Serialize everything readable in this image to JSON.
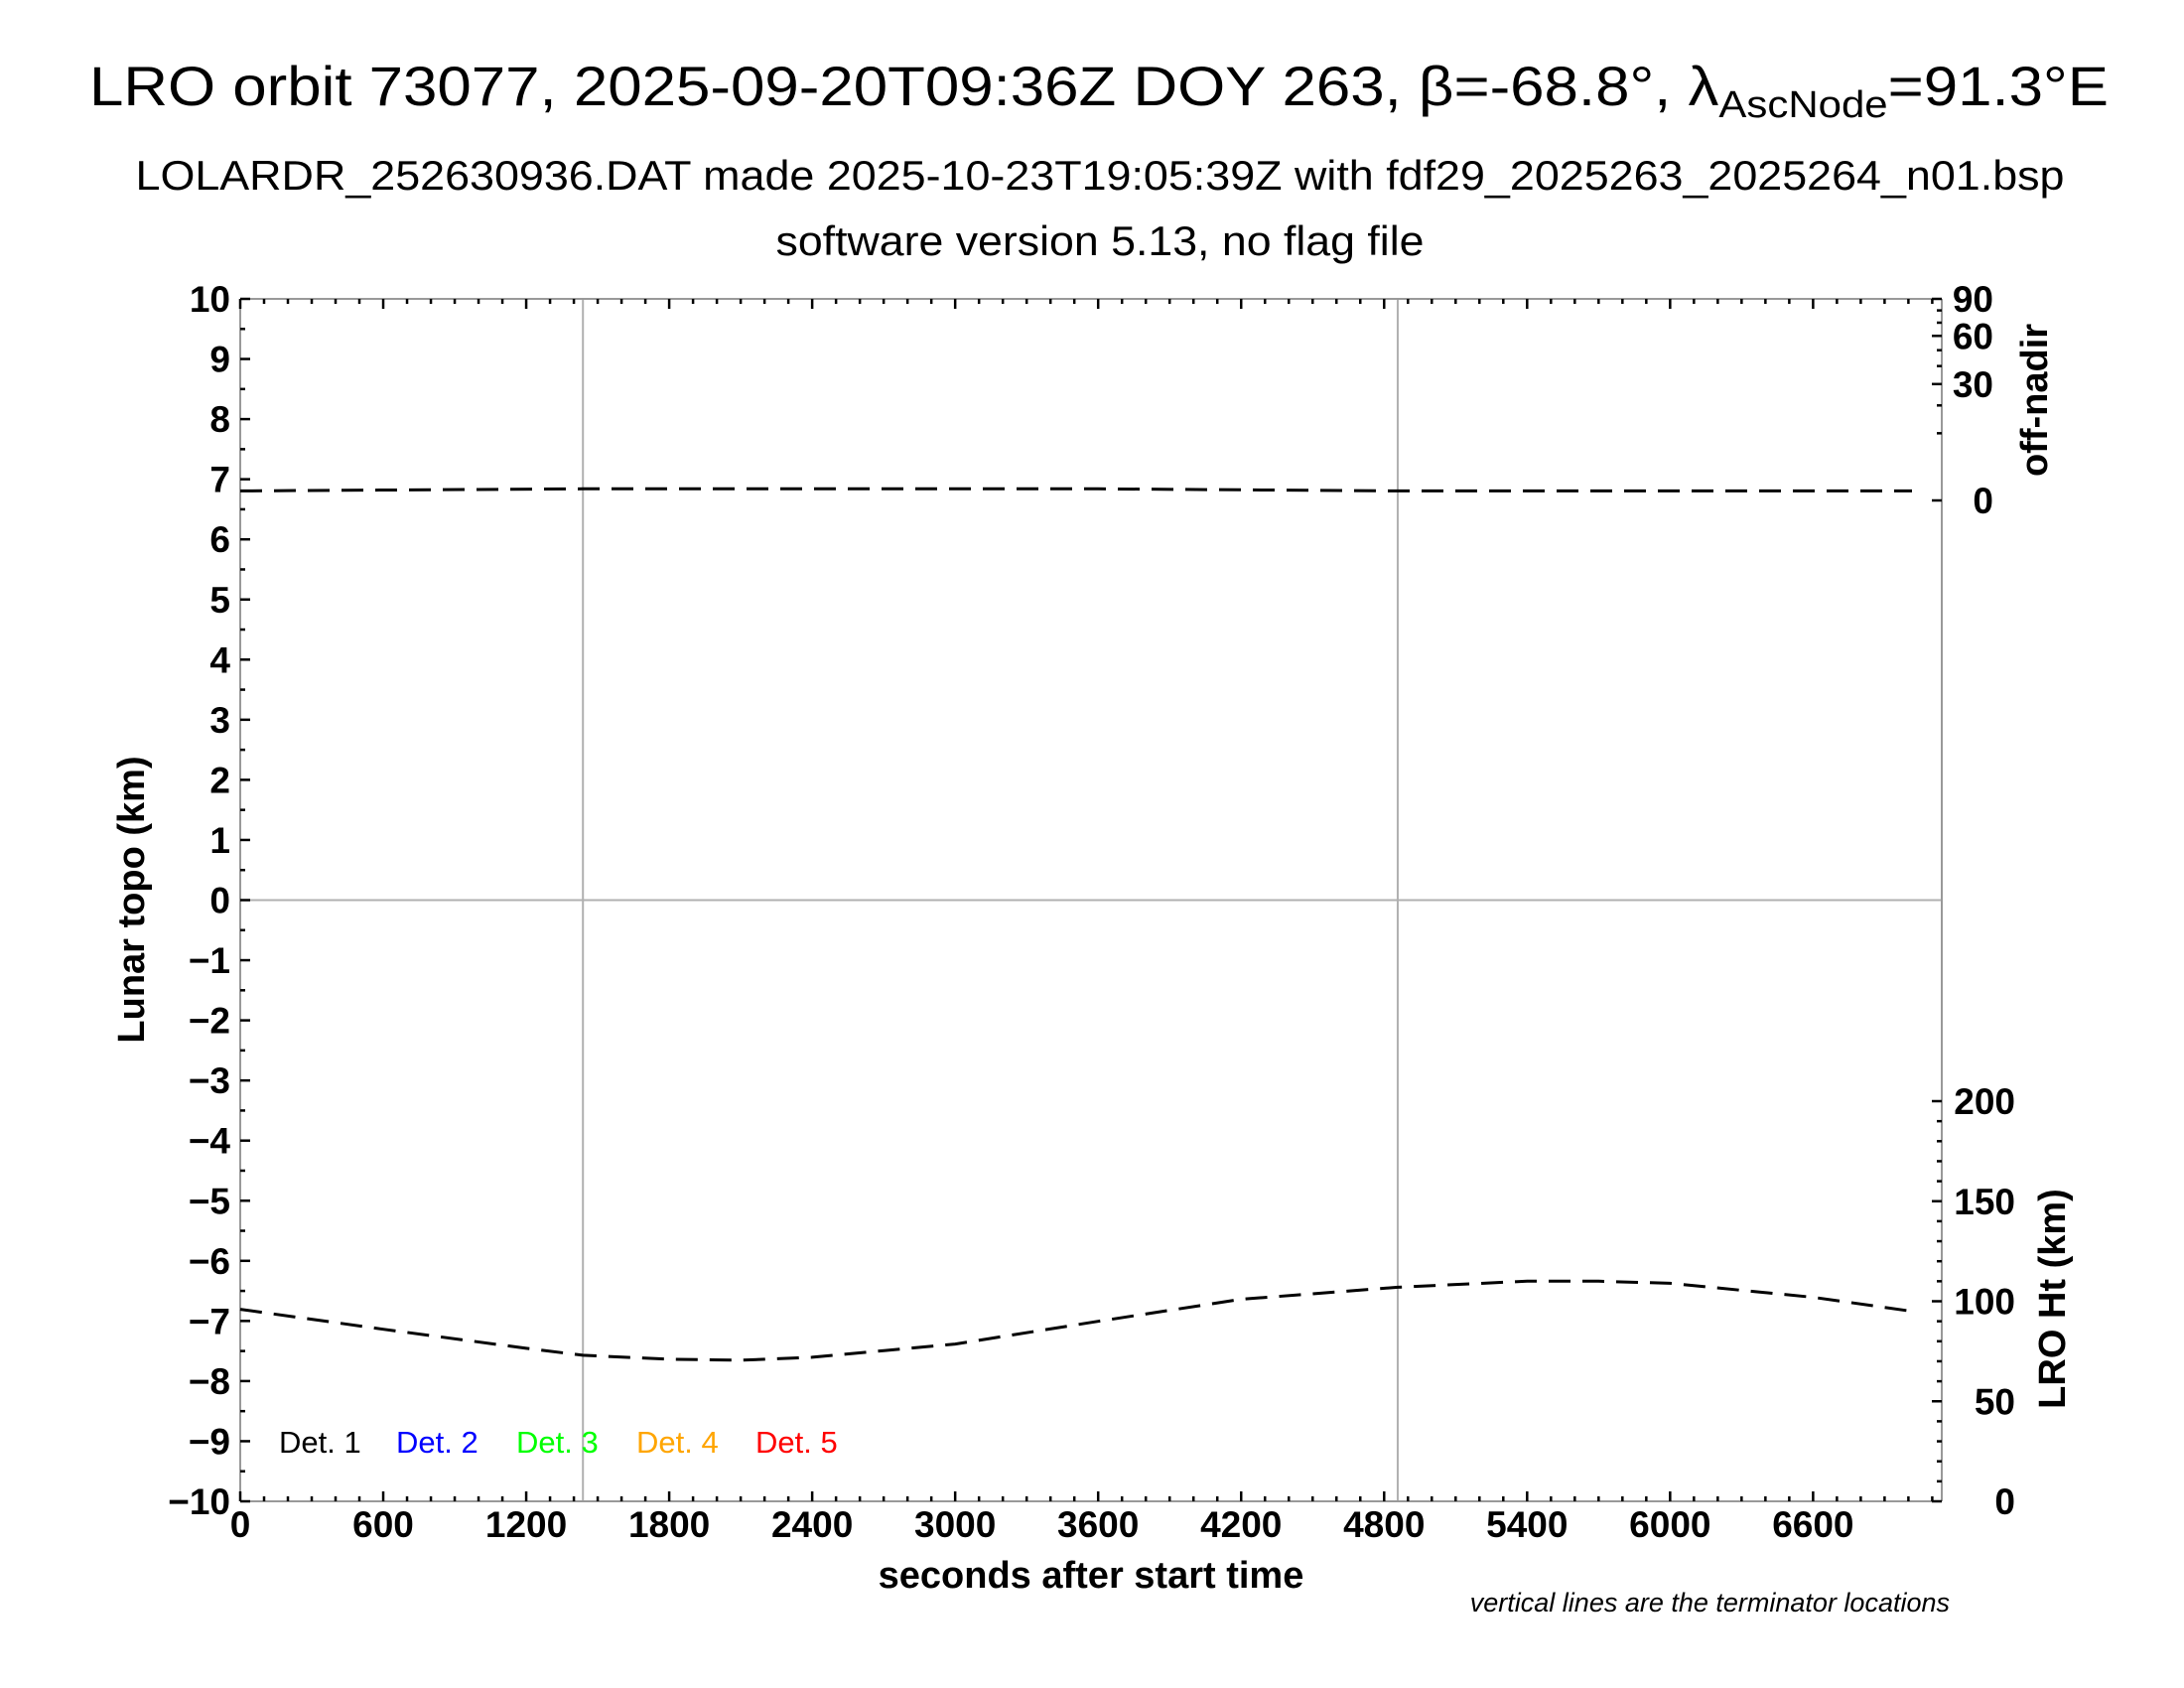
{
  "chart_data": {
    "type": "line",
    "title": {
      "main": "LRO orbit 73077, 2025-09-20T09:36Z DOY 263, β=-68.8°, λ",
      "sub": "AscNode",
      "tail": "=91.3°E"
    },
    "subtitle": "LOLARDR_252630936.DAT made 2025-10-23T19:05:39Z with fdf29_2025263_2025264_n01.bsp",
    "subtitle2": "software version 5.13, no flag file",
    "xlabel": "seconds after start time",
    "ylabel": "Lunar topo (km)",
    "y2label_top": "off-nadir",
    "y2label_bottom": "LRO Ht (km)",
    "note": "vertical lines are the terminator locations",
    "xlim": [
      0,
      7140
    ],
    "ylim": [
      -10,
      10
    ],
    "xticks": [
      "0",
      "600",
      "1200",
      "1800",
      "2400",
      "3000",
      "3600",
      "4200",
      "4800",
      "5400",
      "6000",
      "6600"
    ],
    "yticks": [
      "10",
      "9",
      "8",
      "7",
      "6",
      "5",
      "4",
      "3",
      "2",
      "1",
      "0",
      "−1",
      "−2",
      "−3",
      "−4",
      "−5",
      "−6",
      "−7",
      "−8",
      "−9",
      "−10"
    ],
    "offnadir_axis": {
      "scale": "sqrt",
      "range": [
        0,
        90
      ],
      "ticks": [
        "90",
        "60",
        "30",
        "0"
      ]
    },
    "height_axis": {
      "range": [
        0,
        200
      ],
      "ticks": [
        "200",
        "150",
        "100",
        "50",
        "0"
      ]
    },
    "terminators": [
      1438,
      4857
    ],
    "grid": "zero line and terminator lines only",
    "legend": {
      "placement": "bottom-left",
      "entries": [
        {
          "label": "Det. 1",
          "color": "#000000"
        },
        {
          "label": "Det. 2",
          "color": "#0000ff"
        },
        {
          "label": "Det. 3",
          "color": "#00ff00"
        },
        {
          "label": "Det. 4",
          "color": "#ffa500"
        },
        {
          "label": "Det. 5",
          "color": "#ff0000"
        }
      ]
    },
    "series": [
      {
        "axis": "off-nadir (deg)",
        "style": "dashed",
        "x": [
          0,
          1438,
          3600,
          4857,
          7015
        ],
        "y": [
          0.2,
          0.3,
          0.3,
          0.2,
          0.2
        ]
      },
      {
        "axis": "LRO Ht (km)",
        "style": "dashed",
        "x": [
          0,
          600,
          1200,
          1438,
          1800,
          2100,
          2400,
          3000,
          3600,
          4200,
          4857,
          5400,
          5700,
          6000,
          6600,
          7015
        ],
        "y": [
          96,
          86,
          76.5,
          73,
          71,
          70.5,
          72,
          78.6,
          90,
          101,
          107,
          110,
          110,
          109,
          102,
          95
        ]
      }
    ]
  }
}
